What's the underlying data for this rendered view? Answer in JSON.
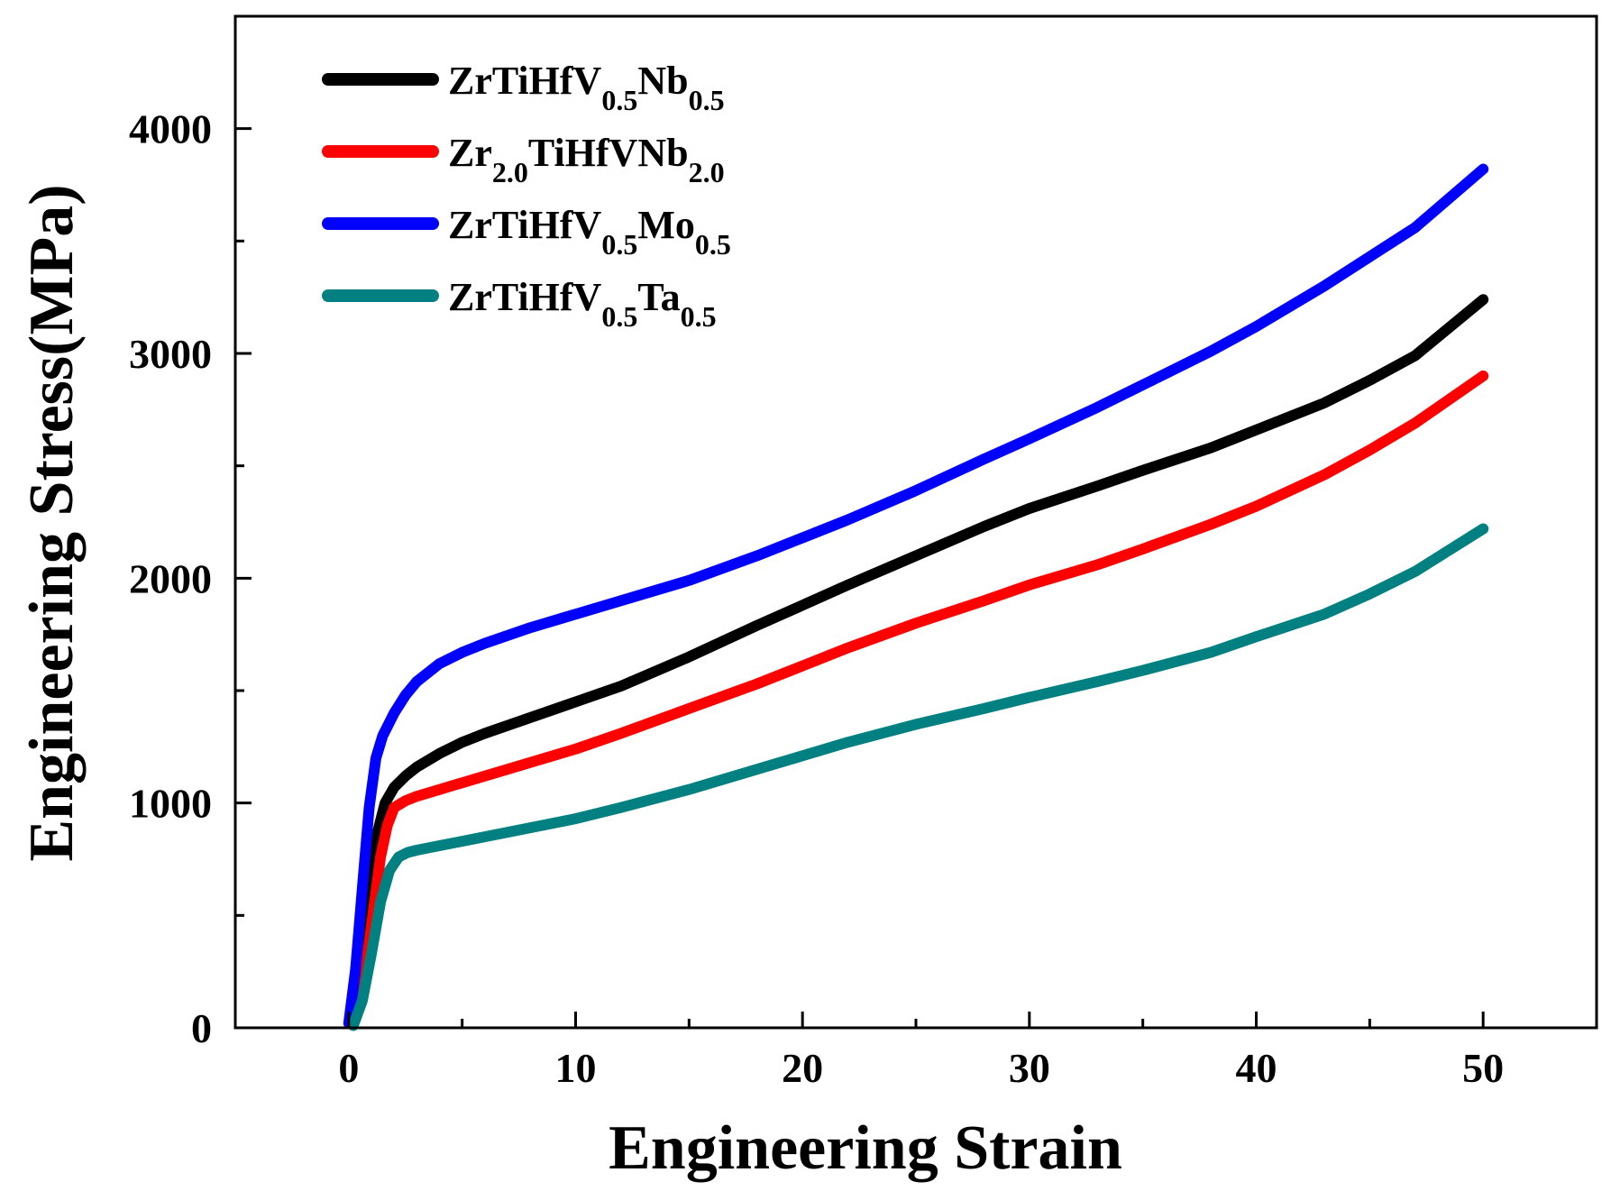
{
  "chart_data": {
    "type": "line",
    "title": "",
    "xlabel": "Engineering Strain",
    "ylabel": "Engineering Stress(MPa)",
    "xlim": [
      -5,
      55
    ],
    "ylim": [
      0,
      4500
    ],
    "x_major_ticks": [
      0,
      10,
      20,
      30,
      40,
      50
    ],
    "x_tick_labels": [
      "0",
      "10",
      "20",
      "30",
      "40",
      "50"
    ],
    "x_minor_ticks": [
      5,
      15,
      25,
      35,
      45
    ],
    "y_major_ticks": [
      0,
      1000,
      2000,
      3000,
      4000
    ],
    "y_tick_labels": [
      "0",
      "1000",
      "2000",
      "3000",
      "4000"
    ],
    "y_minor_ticks": [
      500,
      1500,
      2500,
      3500
    ],
    "legend_position": "top-left",
    "series": [
      {
        "name": "ZrTiHfV0.5Nb0.5",
        "label_parts": [
          {
            "t": "ZrTiHfV",
            "sub": false
          },
          {
            "t": "0.5",
            "sub": true
          },
          {
            "t": "Nb",
            "sub": false
          },
          {
            "t": "0.5",
            "sub": true
          }
        ],
        "color": "#000000",
        "x": [
          0.1,
          0.4,
          0.7,
          1.0,
          1.3,
          1.6,
          2.0,
          2.5,
          3.0,
          4.0,
          5.0,
          6.0,
          8.0,
          10.0,
          12.0,
          15.0,
          18.0,
          20.0,
          22.0,
          25.0,
          28.0,
          30.0,
          33.0,
          35.0,
          38.0,
          40.0,
          43.0,
          45.0,
          47.0,
          50.0
        ],
        "y": [
          30,
          150,
          380,
          660,
          880,
          1000,
          1070,
          1120,
          1160,
          1220,
          1270,
          1310,
          1380,
          1450,
          1520,
          1650,
          1790,
          1880,
          1970,
          2100,
          2230,
          2310,
          2410,
          2480,
          2580,
          2660,
          2780,
          2880,
          2990,
          3240
        ]
      },
      {
        "name": "Zr2.0TiHfVNb2.0",
        "label_parts": [
          {
            "t": "Zr",
            "sub": false
          },
          {
            "t": "2.0",
            "sub": true
          },
          {
            "t": "TiHfVNb",
            "sub": false
          },
          {
            "t": "2.0",
            "sub": true
          }
        ],
        "color": "#ff0000",
        "x": [
          0.2,
          0.5,
          0.8,
          1.1,
          1.4,
          1.7,
          2.0,
          2.5,
          3.0,
          4.0,
          5.0,
          6.0,
          8.0,
          10.0,
          12.0,
          15.0,
          18.0,
          20.0,
          22.0,
          25.0,
          28.0,
          30.0,
          33.0,
          35.0,
          38.0,
          40.0,
          43.0,
          45.0,
          47.0,
          50.0
        ],
        "y": [
          20,
          110,
          300,
          530,
          760,
          900,
          980,
          1010,
          1030,
          1060,
          1090,
          1120,
          1180,
          1240,
          1310,
          1420,
          1530,
          1610,
          1690,
          1800,
          1900,
          1970,
          2060,
          2130,
          2240,
          2320,
          2460,
          2570,
          2690,
          2900
        ]
      },
      {
        "name": "ZrTiHfV0.5Mo0.5",
        "label_parts": [
          {
            "t": "ZrTiHfV",
            "sub": false
          },
          {
            "t": "0.5",
            "sub": true
          },
          {
            "t": "Mo",
            "sub": false
          },
          {
            "t": "0.5",
            "sub": true
          }
        ],
        "color": "#0000ff",
        "x": [
          0.0,
          0.3,
          0.6,
          0.9,
          1.2,
          1.5,
          2.0,
          2.5,
          3.0,
          4.0,
          5.0,
          6.0,
          8.0,
          10.0,
          12.0,
          15.0,
          18.0,
          20.0,
          22.0,
          25.0,
          28.0,
          30.0,
          33.0,
          35.0,
          38.0,
          40.0,
          43.0,
          45.0,
          47.0,
          50.0
        ],
        "y": [
          20,
          260,
          620,
          980,
          1200,
          1300,
          1400,
          1480,
          1540,
          1620,
          1670,
          1710,
          1780,
          1840,
          1900,
          1990,
          2100,
          2180,
          2260,
          2390,
          2530,
          2620,
          2760,
          2860,
          3010,
          3120,
          3300,
          3430,
          3560,
          3820
        ]
      },
      {
        "name": "ZrTiHfV0.5Ta0.5",
        "label_parts": [
          {
            "t": "ZrTiHfV",
            "sub": false
          },
          {
            "t": "0.5",
            "sub": true
          },
          {
            "t": "Ta",
            "sub": false
          },
          {
            "t": "0.5",
            "sub": true
          }
        ],
        "color": "#008080",
        "x": [
          0.2,
          0.6,
          1.0,
          1.4,
          1.8,
          2.2,
          2.6,
          3.0,
          4.0,
          5.0,
          6.0,
          8.0,
          10.0,
          12.0,
          15.0,
          18.0,
          20.0,
          22.0,
          25.0,
          28.0,
          30.0,
          33.0,
          35.0,
          38.0,
          40.0,
          43.0,
          45.0,
          47.0,
          50.0
        ],
        "y": [
          10,
          120,
          330,
          560,
          700,
          760,
          780,
          790,
          810,
          830,
          850,
          890,
          930,
          980,
          1060,
          1150,
          1210,
          1270,
          1350,
          1420,
          1470,
          1540,
          1590,
          1670,
          1740,
          1840,
          1930,
          2030,
          2220
        ]
      }
    ]
  }
}
